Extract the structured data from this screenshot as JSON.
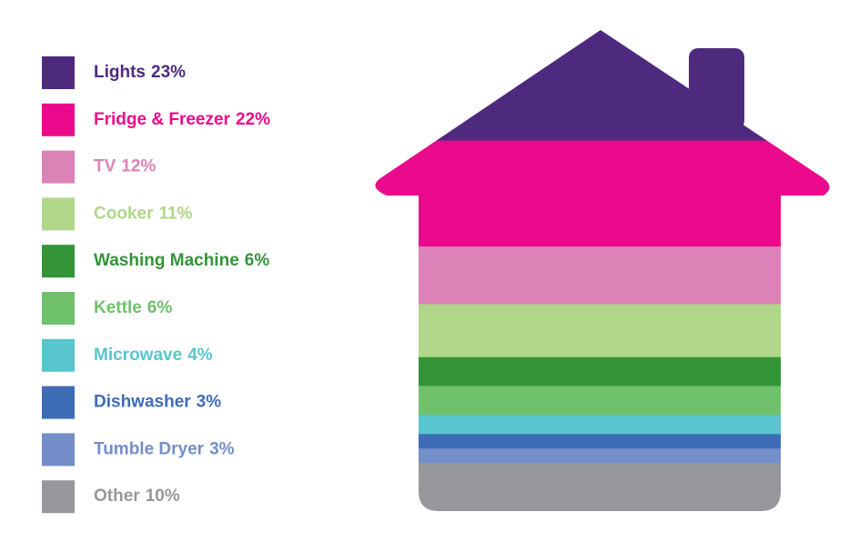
{
  "chart_data": {
    "type": "house",
    "categories": [
      "Lights",
      "Fridge & Freezer",
      "TV",
      "Cooker",
      "Washing Machine",
      "Kettle",
      "Microwave",
      "Dishwasher",
      "Tumble Dryer",
      "Other"
    ],
    "values": [
      23,
      22,
      12,
      11,
      6,
      6,
      4,
      3,
      3,
      10
    ],
    "value_labels": [
      "23%",
      "22%",
      "12%",
      "11%",
      "6%",
      "6%",
      "4%",
      "3%",
      "3%",
      "10%"
    ],
    "colors": [
      "#4e2a7f",
      "#ec0a8c",
      "#dc82b6",
      "#b0d68a",
      "#339438",
      "#6fc16b",
      "#59c5cf",
      "#3f6cb7",
      "#738ec9",
      "#97989c"
    ]
  }
}
